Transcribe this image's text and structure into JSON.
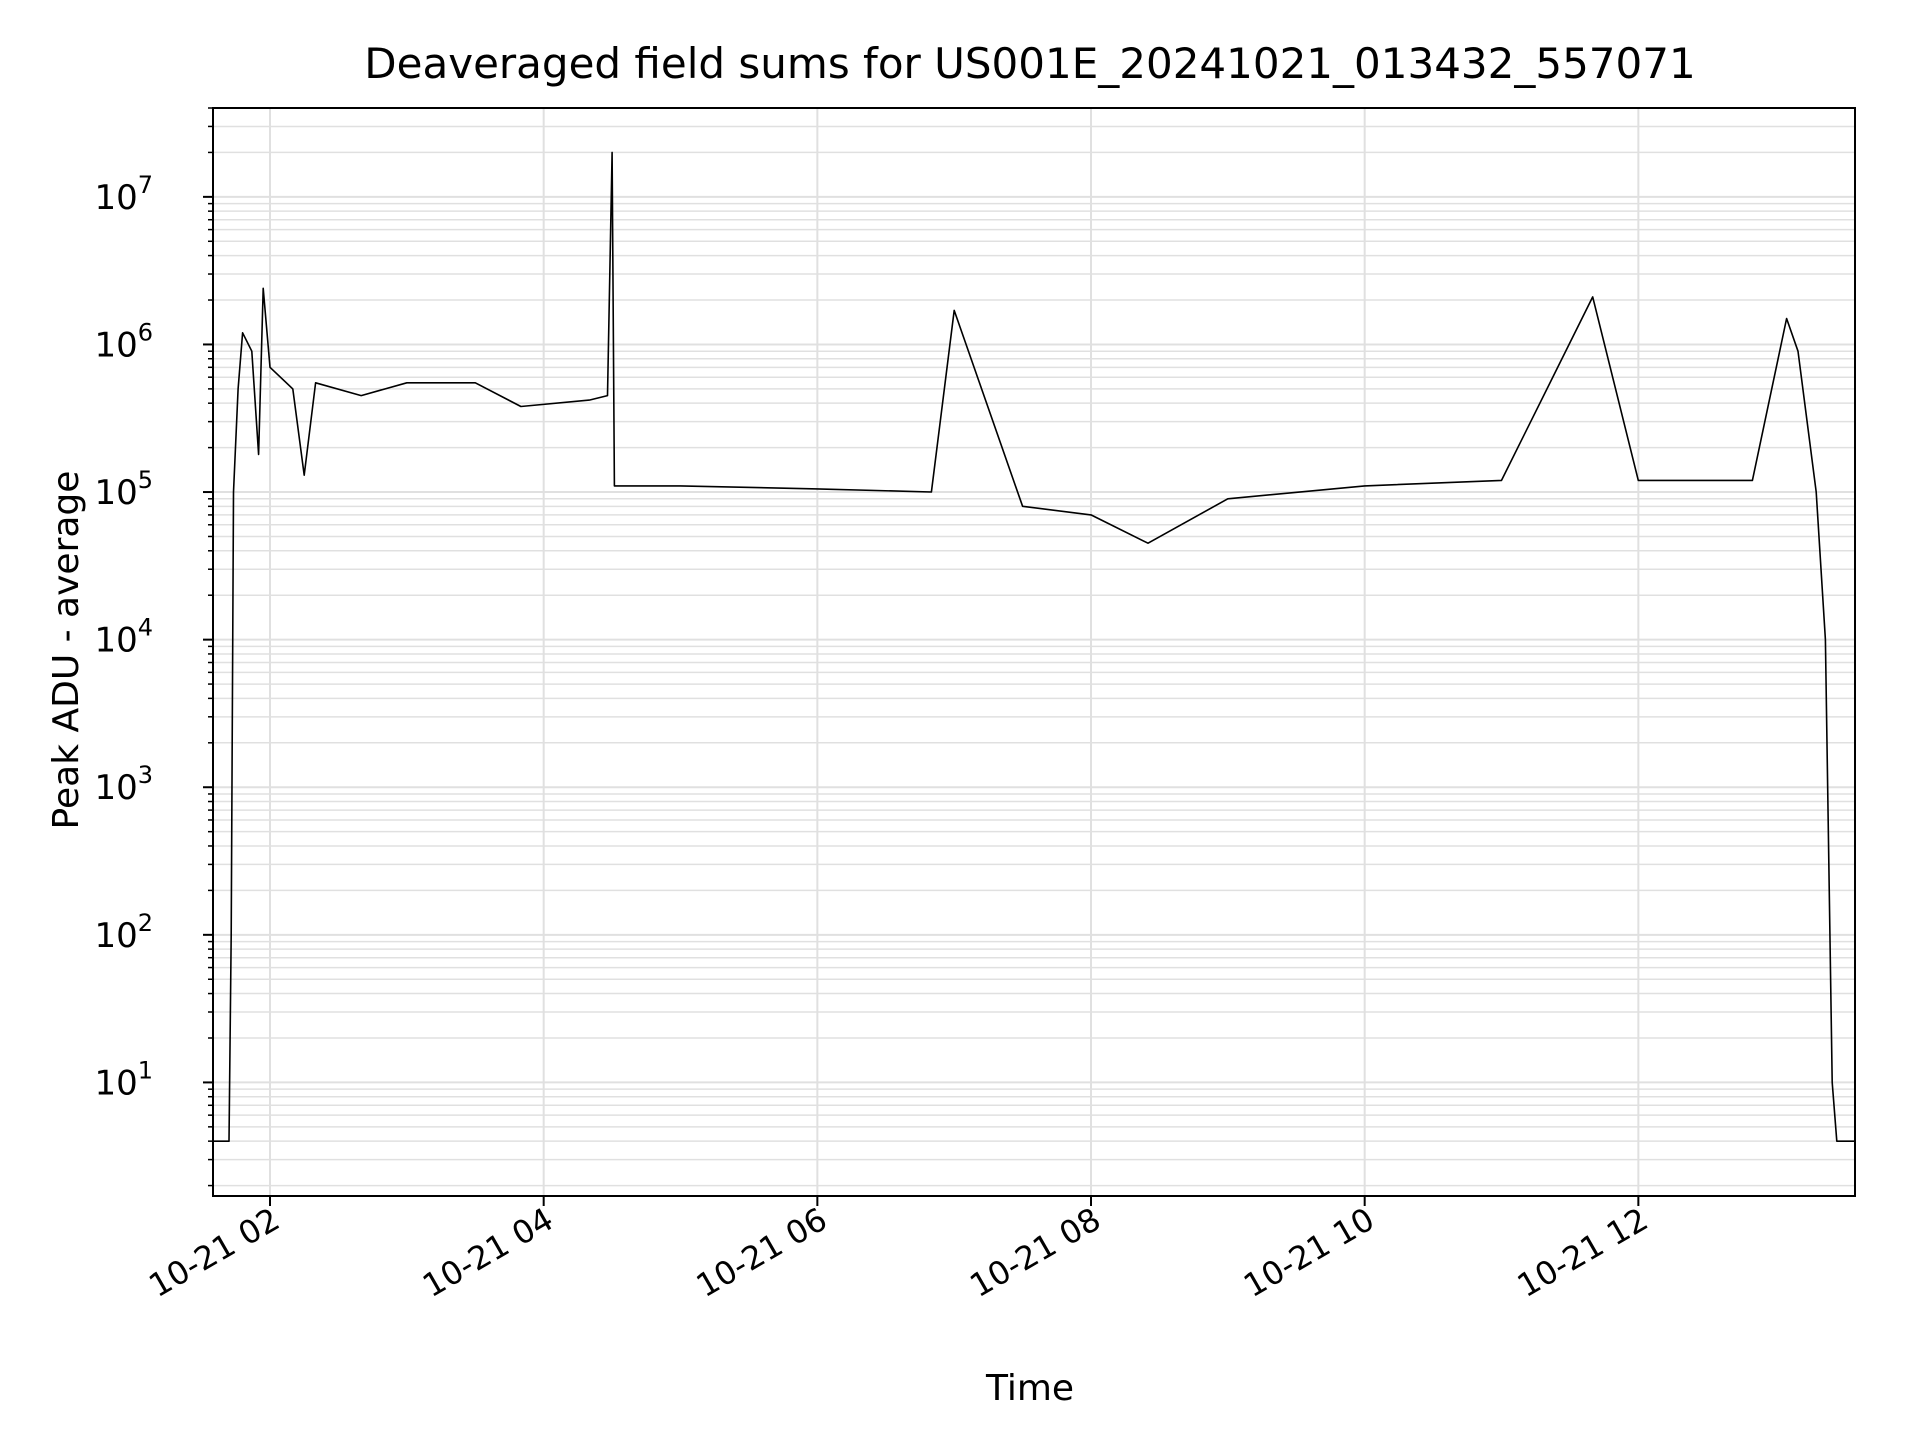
{
  "chart_data": {
    "type": "line",
    "title": "Deaveraged field sums for US001E_20241021_013432_557071",
    "xlabel": "Time",
    "ylabel": "Peak ADU - average",
    "yscale": "log",
    "grid": true,
    "line_color": "#000000",
    "grid_color": "#e0e0e0",
    "xlim": [
      "2024-10-21 01:35",
      "2024-10-21 13:35"
    ],
    "ylim": [
      1.7,
      40000000
    ],
    "x_ticks": [
      {
        "value": "2024-10-21 02:00",
        "label": "10-21 02"
      },
      {
        "value": "2024-10-21 04:00",
        "label": "10-21 04"
      },
      {
        "value": "2024-10-21 06:00",
        "label": "10-21 06"
      },
      {
        "value": "2024-10-21 08:00",
        "label": "10-21 08"
      },
      {
        "value": "2024-10-21 10:00",
        "label": "10-21 10"
      },
      {
        "value": "2024-10-21 12:00",
        "label": "10-21 12"
      }
    ],
    "y_ticks": [
      {
        "value": 10,
        "base": "10",
        "exp": "1"
      },
      {
        "value": 100,
        "base": "10",
        "exp": "2"
      },
      {
        "value": 1000,
        "base": "10",
        "exp": "3"
      },
      {
        "value": 10000,
        "base": "10",
        "exp": "4"
      },
      {
        "value": 100000,
        "base": "10",
        "exp": "5"
      },
      {
        "value": 1000000,
        "base": "10",
        "exp": "6"
      },
      {
        "value": 10000000,
        "base": "10",
        "exp": "7"
      }
    ],
    "series": [
      {
        "points": [
          [
            "2024-10-21 01:35",
            4
          ],
          [
            "2024-10-21 01:42",
            4
          ],
          [
            "2024-10-21 01:43",
            100
          ],
          [
            "2024-10-21 01:44",
            100000
          ],
          [
            "2024-10-21 01:46",
            500000
          ],
          [
            "2024-10-21 01:48",
            1200000
          ],
          [
            "2024-10-21 01:52",
            900000
          ],
          [
            "2024-10-21 01:55",
            180000
          ],
          [
            "2024-10-21 01:57",
            2400000
          ],
          [
            "2024-10-21 02:00",
            700000
          ],
          [
            "2024-10-21 02:10",
            500000
          ],
          [
            "2024-10-21 02:15",
            130000
          ],
          [
            "2024-10-21 02:20",
            550000
          ],
          [
            "2024-10-21 02:40",
            450000
          ],
          [
            "2024-10-21 03:00",
            550000
          ],
          [
            "2024-10-21 03:30",
            550000
          ],
          [
            "2024-10-21 03:50",
            380000
          ],
          [
            "2024-10-21 04:20",
            420000
          ],
          [
            "2024-10-21 04:28",
            450000
          ],
          [
            "2024-10-21 04:30",
            20000000
          ],
          [
            "2024-10-21 04:31",
            110000
          ],
          [
            "2024-10-21 05:00",
            110000
          ],
          [
            "2024-10-21 06:00",
            105000
          ],
          [
            "2024-10-21 06:50",
            100000
          ],
          [
            "2024-10-21 07:00",
            1700000
          ],
          [
            "2024-10-21 07:30",
            80000
          ],
          [
            "2024-10-21 08:00",
            70000
          ],
          [
            "2024-10-21 08:25",
            45000
          ],
          [
            "2024-10-21 09:00",
            90000
          ],
          [
            "2024-10-21 10:00",
            110000
          ],
          [
            "2024-10-21 11:00",
            120000
          ],
          [
            "2024-10-21 11:40",
            2100000
          ],
          [
            "2024-10-21 12:00",
            120000
          ],
          [
            "2024-10-21 12:50",
            120000
          ],
          [
            "2024-10-21 13:05",
            1500000
          ],
          [
            "2024-10-21 13:10",
            900000
          ],
          [
            "2024-10-21 13:18",
            100000
          ],
          [
            "2024-10-21 13:22",
            10000
          ],
          [
            "2024-10-21 13:25",
            10
          ],
          [
            "2024-10-21 13:27",
            4
          ],
          [
            "2024-10-21 13:35",
            4
          ]
        ]
      }
    ]
  }
}
